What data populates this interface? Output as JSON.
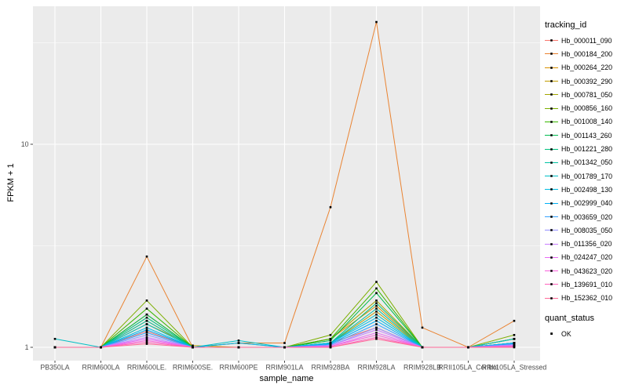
{
  "figure": {
    "background": "#FFFFFF",
    "panel_bg": "#EBEBEB",
    "grid_color": "#FFFFFF",
    "axis_text_color": "#4D4D4D",
    "tick_color": "#333333"
  },
  "chart_data": {
    "type": "line",
    "title": "",
    "xlabel": "sample_name",
    "ylabel": "FPKM + 1",
    "y_scale": "log10",
    "y_ticks": [
      1,
      10
    ],
    "y_minor": [
      3.162,
      31.62
    ],
    "ylim": [
      0.95,
      48
    ],
    "grid": true,
    "legend_position": "right",
    "point_color": "#000000",
    "categories": [
      "PB350LA",
      "RRIM600LA",
      "RRIM600LE.",
      "RRIM600SE.",
      "RRIM600PE",
      "RRIM901LA",
      "RRIM928BA",
      "RRIM928LA",
      "RRIM928LB",
      "RRII105LA_Control",
      "RRII105LA_Stressed"
    ],
    "legend": {
      "title": "tracking_id"
    },
    "quant_legend": {
      "title": "quant_status",
      "items": [
        {
          "label": "OK"
        }
      ]
    },
    "series": [
      {
        "name": "Hb_000011_090",
        "color": "#F8766D",
        "values": [
          1,
          1,
          1.2,
          1,
          1,
          1,
          1.05,
          1.25,
          1,
          1,
          1.05
        ]
      },
      {
        "name": "Hb_000184_200",
        "color": "#EA8331",
        "values": [
          1,
          1,
          2.8,
          1,
          1.05,
          1.05,
          4.9,
          40,
          1.25,
          1,
          1.35
        ]
      },
      {
        "name": "Hb_000264_220",
        "color": "#D89000",
        "values": [
          1,
          1,
          1.35,
          1,
          1,
          1,
          1.1,
          1.6,
          1,
          1,
          1.1
        ]
      },
      {
        "name": "Hb_000392_290",
        "color": "#C09B00",
        "values": [
          1,
          1,
          1.3,
          1.02,
          1,
          1,
          1.05,
          1.5,
          1,
          1,
          1.05
        ]
      },
      {
        "name": "Hb_000781_050",
        "color": "#A3A500",
        "values": [
          1,
          1,
          1.45,
          1,
          1.05,
          1,
          1.1,
          1.7,
          1,
          1,
          1.1
        ]
      },
      {
        "name": "Hb_000856_160",
        "color": "#7CAE00",
        "values": [
          1,
          1,
          1.7,
          1,
          1,
          1,
          1.15,
          2.1,
          1,
          1,
          1.15
        ]
      },
      {
        "name": "Hb_001008_140",
        "color": "#39B600",
        "values": [
          1,
          1,
          1.55,
          1,
          1,
          1,
          1.1,
          1.95,
          1,
          1,
          1.1
        ]
      },
      {
        "name": "Hb_001143_260",
        "color": "#00BB4E",
        "values": [
          1,
          1,
          1.45,
          1,
          1,
          1,
          1.08,
          1.85,
          1,
          1,
          1.05
        ]
      },
      {
        "name": "Hb_001221_280",
        "color": "#00BF7D",
        "values": [
          1,
          1,
          1.4,
          1,
          1,
          1,
          1.05,
          1.65,
          1,
          1,
          1.05
        ]
      },
      {
        "name": "Hb_001342_050",
        "color": "#00C1A3",
        "values": [
          1,
          1,
          1.35,
          1,
          1,
          1,
          1.05,
          1.55,
          1,
          1,
          1.05
        ]
      },
      {
        "name": "Hb_001789_170",
        "color": "#00BFC4",
        "values": [
          1.1,
          1,
          1.3,
          1,
          1.08,
          1,
          1.05,
          1.45,
          1,
          1,
          1.1
        ]
      },
      {
        "name": "Hb_002498_130",
        "color": "#00BAE0",
        "values": [
          1,
          1,
          1.25,
          1,
          1,
          1,
          1.05,
          1.4,
          1,
          1,
          1.05
        ]
      },
      {
        "name": "Hb_002999_040",
        "color": "#00B0F6",
        "values": [
          1,
          1,
          1.22,
          1,
          1.05,
          1,
          1.04,
          1.35,
          1,
          1,
          1.05
        ]
      },
      {
        "name": "Hb_003659_020",
        "color": "#35A2FF",
        "values": [
          1,
          1,
          1.18,
          1,
          1,
          1,
          1.03,
          1.3,
          1,
          1,
          1.04
        ]
      },
      {
        "name": "Hb_008035_050",
        "color": "#9590FF",
        "values": [
          1,
          1,
          1.15,
          1,
          1,
          1,
          1.02,
          1.25,
          1,
          1,
          1.03
        ]
      },
      {
        "name": "Hb_011356_020",
        "color": "#C77CFF",
        "values": [
          1,
          1,
          1.12,
          1,
          1,
          1,
          1.02,
          1.22,
          1,
          1,
          1.02
        ]
      },
      {
        "name": "Hb_024247_020",
        "color": "#E76BF3",
        "values": [
          1,
          1,
          1.1,
          1,
          1,
          1,
          1.01,
          1.18,
          1,
          1,
          1.02
        ]
      },
      {
        "name": "Hb_043623_020",
        "color": "#FA62DB",
        "values": [
          1,
          1,
          1.08,
          1,
          1,
          1,
          1.01,
          1.15,
          1,
          1,
          1.01
        ]
      },
      {
        "name": "Hb_139691_010",
        "color": "#FF62BC",
        "values": [
          1,
          1,
          1.06,
          1,
          1,
          1,
          1,
          1.12,
          1,
          1,
          1.01
        ]
      },
      {
        "name": "Hb_152362_010",
        "color": "#FF6A98",
        "values": [
          1,
          1,
          1.04,
          1,
          1,
          1,
          1,
          1.1,
          1,
          1,
          1
        ]
      }
    ]
  }
}
